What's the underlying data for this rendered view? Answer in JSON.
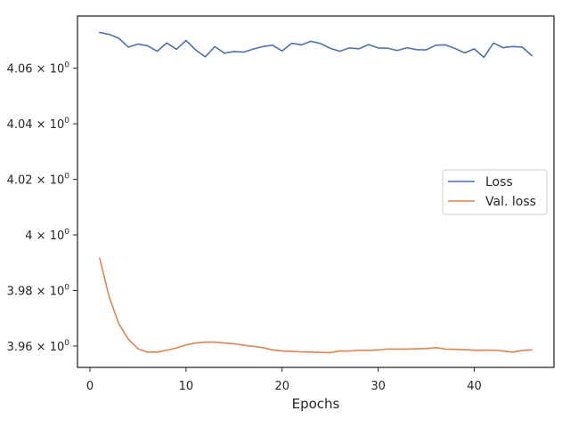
{
  "chart_data": {
    "type": "line",
    "title": "",
    "xlabel": "Epochs",
    "ylabel": "",
    "xlim": [
      -1.3,
      48.3
    ],
    "ylim": [
      3.9523,
      4.0788
    ],
    "yscale": "log",
    "grid": false,
    "legend_position": "center-right",
    "x_ticks": [
      0,
      10,
      20,
      30,
      40
    ],
    "x_tick_labels": [
      "0",
      "10",
      "20",
      "30",
      "40"
    ],
    "y_ticks": [
      3.96,
      3.98,
      4.0,
      4.02,
      4.04,
      4.06
    ],
    "y_tick_labels": [
      {
        "mantissa": "3.96",
        "exponent": "0"
      },
      {
        "mantissa": "3.98",
        "exponent": "0"
      },
      {
        "mantissa": "4",
        "exponent": "0"
      },
      {
        "mantissa": "4.02",
        "exponent": "0"
      },
      {
        "mantissa": "4.04",
        "exponent": "0"
      },
      {
        "mantissa": "4.06",
        "exponent": "0"
      }
    ],
    "x": [
      1,
      2,
      3,
      4,
      5,
      6,
      7,
      8,
      9,
      10,
      11,
      12,
      13,
      14,
      15,
      16,
      17,
      18,
      19,
      20,
      21,
      22,
      23,
      24,
      25,
      26,
      27,
      28,
      29,
      30,
      31,
      32,
      33,
      34,
      35,
      36,
      37,
      38,
      39,
      40,
      41,
      42,
      43,
      44,
      45,
      46
    ],
    "series": [
      {
        "name": "Loss",
        "color": "#4c72b0",
        "values": [
          4.0729,
          4.0722,
          4.0708,
          4.0676,
          4.0687,
          4.0681,
          4.0661,
          4.0691,
          4.0668,
          4.07,
          4.0666,
          4.0641,
          4.0678,
          4.0654,
          4.066,
          4.0658,
          4.0669,
          4.0678,
          4.0683,
          4.0662,
          4.069,
          4.0684,
          4.0697,
          4.0689,
          4.0672,
          4.0661,
          4.0673,
          4.067,
          4.0685,
          4.0673,
          4.0672,
          4.0664,
          4.0674,
          4.0667,
          4.0666,
          4.0683,
          4.0684,
          4.0671,
          4.0655,
          4.067,
          4.0639,
          4.0691,
          4.0674,
          4.0678,
          4.0676,
          4.0645
        ]
      },
      {
        "name": "Val. loss",
        "color": "#dd8452",
        "values": [
          3.9917,
          3.9777,
          3.968,
          3.9624,
          3.959,
          3.9578,
          3.9578,
          3.9585,
          3.9593,
          3.9604,
          3.9611,
          3.9614,
          3.9614,
          3.9611,
          3.9608,
          3.9603,
          3.9599,
          3.9594,
          3.9586,
          3.9582,
          3.9581,
          3.9579,
          3.9578,
          3.9577,
          3.9576,
          3.9582,
          3.9582,
          3.9585,
          3.9584,
          3.9586,
          3.9589,
          3.9589,
          3.9589,
          3.959,
          3.9591,
          3.9594,
          3.9589,
          3.9588,
          3.9587,
          3.9585,
          3.9585,
          3.9585,
          3.9582,
          3.9578,
          3.9584,
          3.9586
        ]
      }
    ]
  }
}
